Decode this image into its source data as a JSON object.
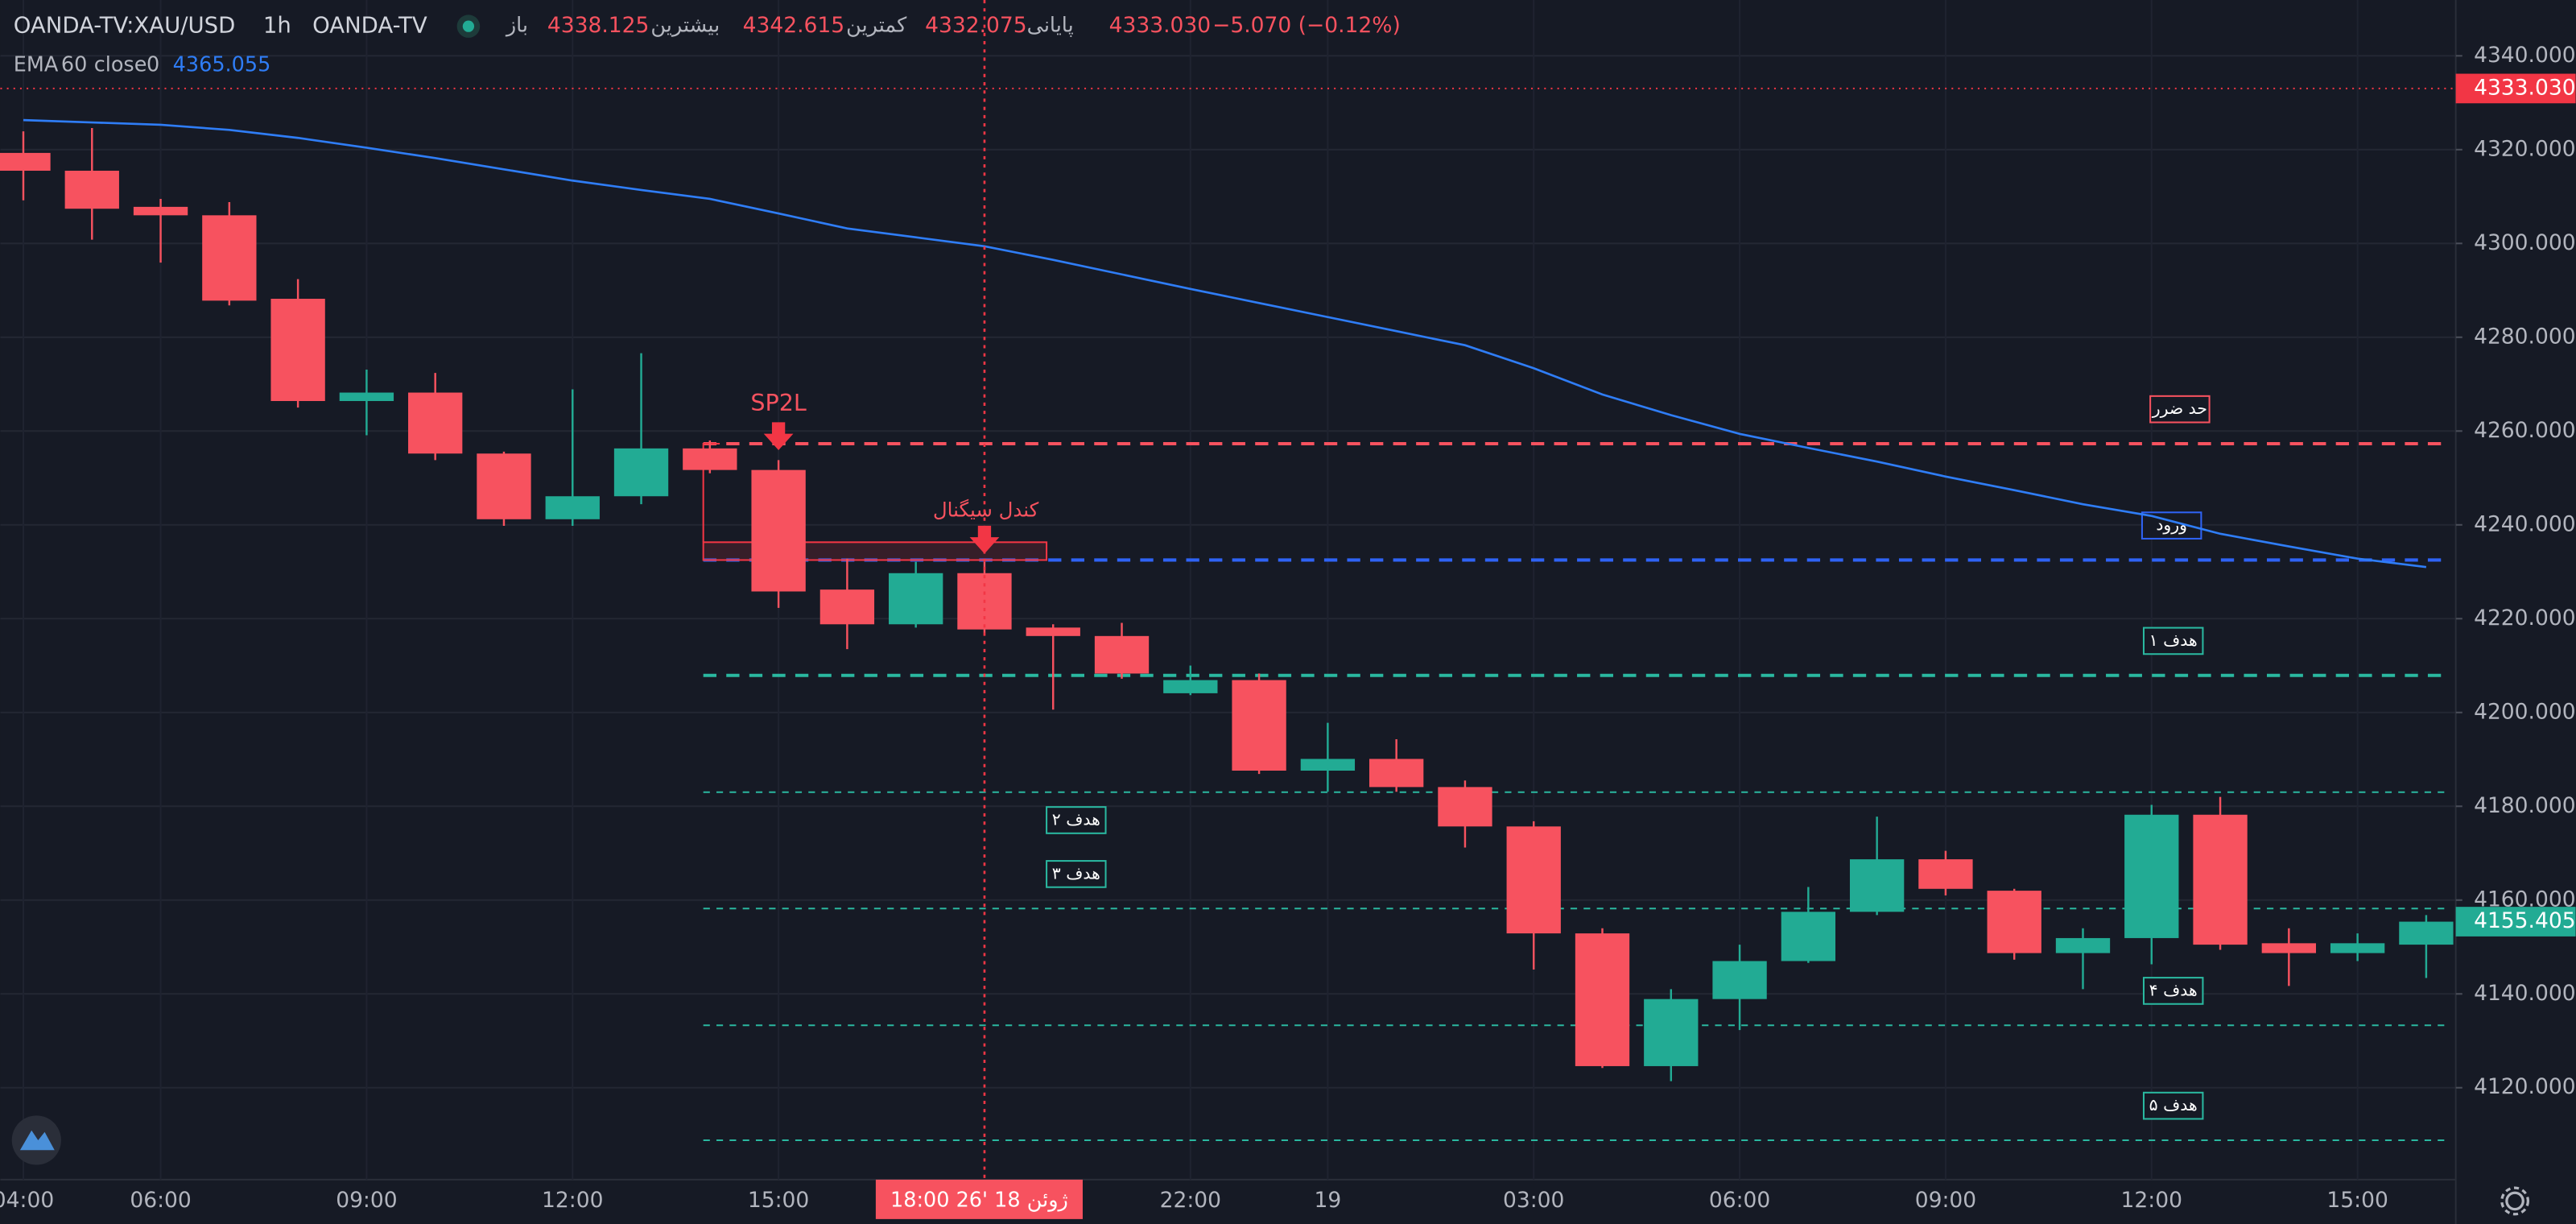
{
  "header": {
    "symbol": "OANDA-TV:XAU/USD",
    "interval": "1h",
    "source": "OANDA-TV",
    "ohlc": [
      {
        "label": "باز",
        "value": "4338.125"
      },
      {
        "label": "بیشترین",
        "value": "4342.615"
      },
      {
        "label": "کمترین",
        "value": "4332.075"
      },
      {
        "label": "پایانی",
        "value": "4333.030"
      }
    ],
    "change": "−5.070 (−0.12%)",
    "indicator": {
      "name": "EMA",
      "length": "60",
      "source": "close",
      "offset": "0",
      "value": "4365.055"
    }
  },
  "chart_data": {
    "type": "candlestick",
    "categories": [
      "04:00",
      null,
      "06:00",
      null,
      null,
      "09:00",
      null,
      null,
      "12:00",
      null,
      null,
      "15:00",
      null,
      null,
      null,
      null,
      null,
      "22:00",
      null,
      "19",
      null,
      null,
      "03:00",
      null,
      null,
      "06:00",
      null,
      null,
      "09:00",
      null,
      null,
      "12:00",
      null,
      null,
      "15:00",
      null
    ],
    "open": [
      4319.3,
      4315.5,
      4307.8,
      4306.0,
      4288.2,
      4266.4,
      4268.2,
      4255.2,
      4241.2,
      4246.1,
      4256.3,
      4251.7,
      4226.2,
      4218.8,
      4229.7,
      4218.1,
      4216.3,
      4204.1,
      4206.9,
      4187.6,
      4190.1,
      4184.1,
      4175.7,
      4152.9,
      4124.6,
      4138.9,
      4147.0,
      4157.5,
      4168.7,
      4162.0,
      4148.7,
      4151.9,
      4178.2,
      4150.8,
      4148.7,
      4150.5
    ],
    "high": [
      4323.9,
      4324.6,
      4309.5,
      4308.8,
      4292.4,
      4273.1,
      4272.4,
      4255.6,
      4268.9,
      4276.6,
      4258.0,
      4253.8,
      4232.8,
      4232.1,
      4232.1,
      4218.8,
      4219.1,
      4210.0,
      4208.3,
      4197.8,
      4194.3,
      4185.5,
      4176.8,
      4154.0,
      4141.0,
      4150.5,
      4162.8,
      4177.8,
      4170.5,
      4162.4,
      4154.0,
      4180.3,
      4182.0,
      4154.0,
      4152.9,
      4156.8
    ],
    "low": [
      4309.2,
      4300.8,
      4295.9,
      4286.8,
      4265.0,
      4259.1,
      4253.8,
      4239.8,
      4239.8,
      4244.4,
      4251.0,
      4222.3,
      4213.5,
      4218.1,
      4217.0,
      4200.6,
      4207.2,
      4203.7,
      4186.9,
      4183.1,
      4183.1,
      4171.2,
      4145.2,
      4124.2,
      4121.4,
      4132.3,
      4146.6,
      4156.8,
      4161.0,
      4147.3,
      4141.0,
      4146.3,
      4149.4,
      4141.7,
      4147.0,
      4143.4
    ],
    "close": [
      4315.5,
      4307.4,
      4306.0,
      4287.8,
      4266.4,
      4268.2,
      4255.2,
      4241.2,
      4246.1,
      4256.3,
      4251.7,
      4225.8,
      4218.8,
      4229.7,
      4217.7,
      4216.3,
      4208.3,
      4206.9,
      4187.6,
      4190.1,
      4184.1,
      4175.7,
      4152.9,
      4124.6,
      4138.9,
      4147.0,
      4157.5,
      4168.7,
      4162.4,
      4148.7,
      4151.9,
      4178.2,
      4150.5,
      4148.7,
      4150.8,
      4155.4
    ],
    "up_color": "#22ab94",
    "down_color": "#f7525f",
    "ema": {
      "color": "#2f7df6",
      "values": [
        4326.3,
        4325.8,
        4325.3,
        4324.2,
        4322.5,
        4320.4,
        4318.2,
        4315.8,
        4313.4,
        4311.4,
        4309.5,
        4306.4,
        4303.2,
        4301.3,
        4299.4,
        4296.5,
        4293.4,
        4290.3,
        4287.3,
        4284.3,
        4281.3,
        4278.3,
        4273.4,
        4267.8,
        4263.4,
        4259.4,
        4256.4,
        4253.5,
        4250.3,
        4247.4,
        4244.4,
        4241.9,
        4238.1,
        4235.4,
        4232.8,
        4231.0
      ]
    },
    "ylim": [
      4100.4,
      4351.9
    ],
    "yticks": [
      {
        "value": 4120,
        "label": "4120.000"
      },
      {
        "value": 4140,
        "label": "4140.000"
      },
      {
        "value": 4160,
        "label": "4160.000"
      },
      {
        "value": 4180,
        "label": "4180.000"
      },
      {
        "value": 4200,
        "label": "4200.000"
      },
      {
        "value": 4220,
        "label": "4220.000"
      },
      {
        "value": 4240,
        "label": "4240.000"
      },
      {
        "value": 4260,
        "label": "4260.000"
      },
      {
        "value": 4280,
        "label": "4280.000"
      },
      {
        "value": 4300,
        "label": "4300.000"
      },
      {
        "value": 4320,
        "label": "4320.000"
      },
      {
        "value": 4340,
        "label": "4340.000"
      }
    ],
    "grid": true,
    "price_tags": [
      {
        "value": 4333.03,
        "label": "4333.030",
        "color": "#f23645"
      },
      {
        "value": 4155.405,
        "label": "4155.405",
        "color": "#22ab94"
      }
    ],
    "levels": [
      {
        "label": "حد ضرر",
        "value": 4257.3,
        "color": "#f7525f",
        "style": "dashed"
      },
      {
        "label": "ورود",
        "value": 4232.5,
        "color": "#2f63f5",
        "style": "dashed"
      },
      {
        "label": "هدف ۱",
        "value": 4207.9,
        "color": "#2ab8a0",
        "style": "dashed"
      },
      {
        "label": "هدف ۲",
        "value": 4183.0,
        "color": "#2ab8a0",
        "style": "dotted"
      },
      {
        "label": "هدف ۳",
        "value": 4158.2,
        "color": "#2ab8a0",
        "style": "dotted"
      },
      {
        "label": "هدف ۴",
        "value": 4133.3,
        "color": "#2ab8a0",
        "style": "dotted"
      },
      {
        "label": "هدف ۵",
        "value": 4108.8,
        "color": "#2ab8a0",
        "style": "dotted"
      }
    ],
    "signal_box": {
      "low": 4232.5,
      "high": 4236.3
    },
    "annotations": [
      "SP2L",
      "کندل سیگنال"
    ],
    "crosshair_label": "18:00  26'  ژوئن 18"
  }
}
